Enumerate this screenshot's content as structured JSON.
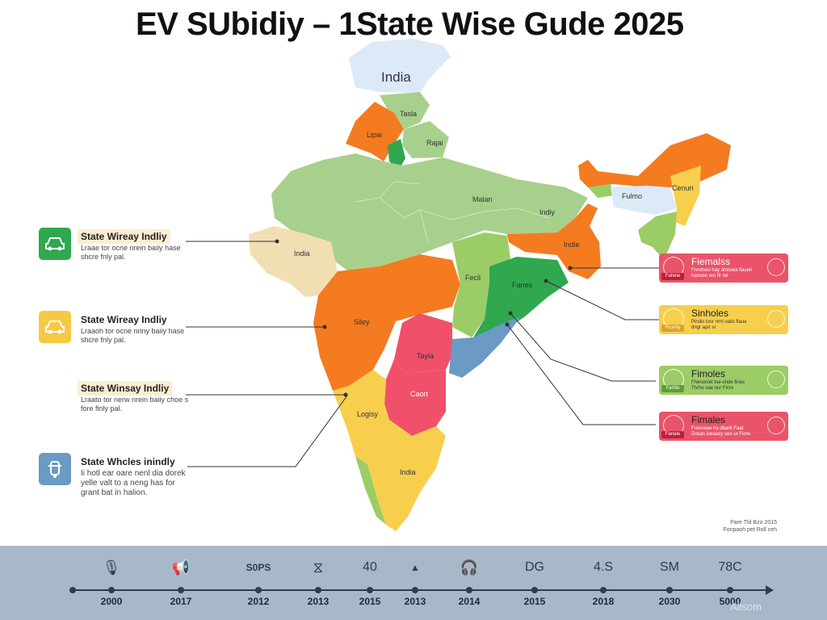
{
  "title": "EV SUbidiy – 1State Wise Gude 2025",
  "map": {
    "labels": {
      "india_top": "India",
      "tasla": "Tasla",
      "lipai": "Lipai",
      "rajai": "Rajai",
      "malan": "Malan",
      "indiy": "Indiy",
      "fulmo": "Fulmo",
      "cenuri": "Cenuri",
      "india_west": "India",
      "indie": "Indie",
      "fecil": "Fecil",
      "fanes": "Fanes",
      "siley": "Siley",
      "tayla": "Tayla",
      "caort": "Caort",
      "logisy": "Logisy",
      "india_south": "India"
    }
  },
  "left_cards": [
    {
      "icon": "car-icon",
      "color": "#2fa84f",
      "title": "State Wireay Indliy",
      "text": "Lraae tor ocne nrein baiiy hase shcre fnly pal."
    },
    {
      "icon": "car-icon",
      "color": "#f6c945",
      "title": "State Wireay Indliy",
      "text": "Lraaoh tor ocne nriny baiiy hase shcre fnly pal."
    },
    {
      "icon": "car-icon",
      "color": "#f6c945",
      "title": "State Winsay Indliy",
      "text": "Lraato tor nerw nrein baiiy choe s fore finly pal."
    },
    {
      "icon": "scooter-icon",
      "color": "#6b9ac4",
      "title": "State Whcles inindly",
      "text": "Ii hotl ear oare nenl dia dorek yelle valt to a neng has for grant bat in halion."
    }
  ],
  "right_cards": [
    {
      "title": "Fiemalss",
      "color": "#e9546a",
      "chip": "Faheie",
      "text": "Fnndneo hay otnlowa fiaueh hanuee reo fir rer"
    },
    {
      "title": "Sinholes",
      "color": "#f7cf4d",
      "chip": "Ficanty",
      "text": "Pindis tosr nrnl oalis fiaua dngr apir sr"
    },
    {
      "title": "Fimoles",
      "color": "#9ccc65",
      "chip": "Farhle",
      "text": "Fhenoniet toe ehde fines Thrhe sae nur Ficre"
    },
    {
      "title": "Fimales",
      "color": "#e9546a",
      "chip": "Fanale",
      "text": "Fntenaae ho dbarb Faat Dosas loeaasy seo ur Fiore"
    }
  ],
  "credit": "Pare Tld Bzo 2015 Fonpaoh pet Roll ceh",
  "timeline": {
    "items": [
      {
        "icon": "microphone-icon",
        "glyph": "🎙",
        "year": "2000"
      },
      {
        "icon": "megaphone-icon",
        "glyph": "📢",
        "year": "2017"
      },
      {
        "icon": "text-icon",
        "glyph": "S0PS",
        "year": "2012"
      },
      {
        "icon": "circle-icon",
        "glyph": "⧖",
        "year": "2013"
      },
      {
        "icon": "text-icon",
        "glyph": "40",
        "year": "2015"
      },
      {
        "icon": "chart-box-icon",
        "glyph": "▲",
        "year": "2013"
      },
      {
        "icon": "headset-icon",
        "glyph": "🎧",
        "year": "2014"
      },
      {
        "icon": "text-icon",
        "glyph": "DG",
        "year": "2015"
      },
      {
        "icon": "text-icon",
        "glyph": "4.S",
        "year": "2018"
      },
      {
        "icon": "text-icon",
        "glyph": "SM",
        "year": "2030"
      },
      {
        "icon": "text-icon",
        "glyph": "78C",
        "year": "5000"
      }
    ],
    "brand": "Allsom"
  }
}
